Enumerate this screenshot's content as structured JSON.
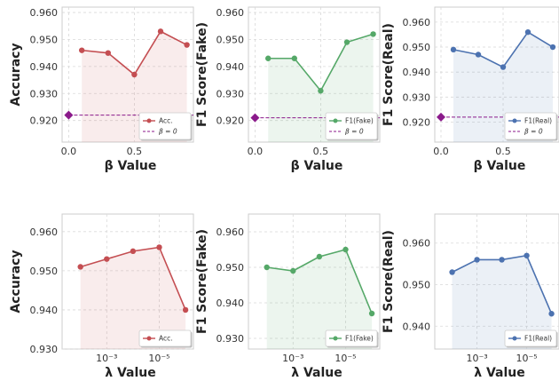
{
  "chart_data": [
    {
      "type": "line",
      "ylabel": "Accuracy",
      "xlabel": "β Value",
      "xscale": "linear",
      "xticks": [
        0.0,
        0.5
      ],
      "xtick_labels": [
        "0.0",
        "0.5"
      ],
      "xlim": [
        -0.05,
        0.95
      ],
      "ylim": [
        0.912,
        0.962
      ],
      "yticks": [
        0.92,
        0.93,
        0.94,
        0.95,
        0.96
      ],
      "ytick_labels": [
        "0.920",
        "0.930",
        "0.940",
        "0.950",
        "0.960"
      ],
      "series": [
        {
          "name": "Acc.",
          "color": "#c44e52",
          "x": [
            0.1,
            0.3,
            0.5,
            0.7,
            0.9
          ],
          "y": [
            0.946,
            0.945,
            0.937,
            0.953,
            0.948
          ]
        }
      ],
      "baseline": {
        "name": "β = 0",
        "color": "#8b1a8b",
        "x": 0.0,
        "y": 0.922
      },
      "legend_position": "lower-right",
      "grid": true
    },
    {
      "type": "line",
      "ylabel": "F1 Score(Fake)",
      "xlabel": "β Value",
      "xscale": "linear",
      "xticks": [
        0.0,
        0.5
      ],
      "xtick_labels": [
        "0.0",
        "0.5"
      ],
      "xlim": [
        -0.05,
        0.95
      ],
      "ylim": [
        0.912,
        0.962
      ],
      "yticks": [
        0.92,
        0.93,
        0.94,
        0.95,
        0.96
      ],
      "ytick_labels": [
        "0.920",
        "0.930",
        "0.940",
        "0.950",
        "0.960"
      ],
      "series": [
        {
          "name": "F1(Fake)",
          "color": "#55a868",
          "x": [
            0.1,
            0.3,
            0.5,
            0.7,
            0.9
          ],
          "y": [
            0.943,
            0.943,
            0.931,
            0.949,
            0.952
          ]
        }
      ],
      "baseline": {
        "name": "β = 0",
        "color": "#8b1a8b",
        "x": 0.0,
        "y": 0.921
      },
      "legend_position": "lower-right",
      "grid": true
    },
    {
      "type": "line",
      "ylabel": "F1 Score(Real)",
      "xlabel": "β Value",
      "xscale": "linear",
      "xticks": [
        0.0,
        0.5
      ],
      "xtick_labels": [
        "0.0",
        "0.5"
      ],
      "xlim": [
        -0.05,
        0.95
      ],
      "ylim": [
        0.912,
        0.966
      ],
      "yticks": [
        0.92,
        0.93,
        0.94,
        0.95,
        0.96
      ],
      "ytick_labels": [
        "0.920",
        "0.930",
        "0.940",
        "0.950",
        "0.960"
      ],
      "series": [
        {
          "name": "F1(Real)",
          "color": "#4c72b0",
          "x": [
            0.1,
            0.3,
            0.5,
            0.7,
            0.9
          ],
          "y": [
            0.949,
            0.947,
            0.942,
            0.956,
            0.95
          ]
        }
      ],
      "baseline": {
        "name": "β = 0",
        "color": "#8b1a8b",
        "x": 0.0,
        "y": 0.922
      },
      "legend_position": "lower-right",
      "grid": true
    },
    {
      "type": "line",
      "ylabel": "Accuracy",
      "xlabel": "λ Value",
      "xscale": "log-reversed",
      "xticks": [
        0.001,
        1e-05
      ],
      "xtick_labels": [
        "10⁻³",
        "10⁻⁵"
      ],
      "xlim": [
        0.05,
        5e-07
      ],
      "ylim": [
        0.93,
        0.9645
      ],
      "yticks": [
        0.93,
        0.94,
        0.95,
        0.96
      ],
      "ytick_labels": [
        "0.930",
        "0.940",
        "0.950",
        "0.960"
      ],
      "series": [
        {
          "name": "Acc.",
          "color": "#c44e52",
          "x": [
            0.01,
            0.001,
            0.0001,
            1e-05,
            1e-06
          ],
          "y": [
            0.951,
            0.953,
            0.955,
            0.956,
            0.94
          ]
        }
      ],
      "legend_position": "lower-right",
      "grid": true
    },
    {
      "type": "line",
      "ylabel": "F1 Score(Fake)",
      "xlabel": "λ Value",
      "xscale": "log-reversed",
      "xticks": [
        0.001,
        1e-05
      ],
      "xtick_labels": [
        "10⁻³",
        "10⁻⁵"
      ],
      "xlim": [
        0.05,
        5e-07
      ],
      "ylim": [
        0.927,
        0.965
      ],
      "yticks": [
        0.93,
        0.94,
        0.95,
        0.96
      ],
      "ytick_labels": [
        "0.930",
        "0.940",
        "0.950",
        "0.960"
      ],
      "series": [
        {
          "name": "F1(Fake)",
          "color": "#55a868",
          "x": [
            0.01,
            0.001,
            0.0001,
            1e-05,
            1e-06
          ],
          "y": [
            0.95,
            0.949,
            0.953,
            0.955,
            0.937
          ]
        }
      ],
      "legend_position": "lower-right",
      "grid": true
    },
    {
      "type": "line",
      "ylabel": "F1 Score(Real)",
      "xlabel": "λ Value",
      "xscale": "log-reversed",
      "xticks": [
        0.001,
        1e-05
      ],
      "xtick_labels": [
        "10⁻³",
        "10⁻⁵"
      ],
      "xlim": [
        0.05,
        5e-07
      ],
      "ylim": [
        0.9345,
        0.967
      ],
      "yticks": [
        0.94,
        0.95,
        0.96
      ],
      "ytick_labels": [
        "0.940",
        "0.950",
        "0.960"
      ],
      "series": [
        {
          "name": "F1(Real)",
          "color": "#4c72b0",
          "x": [
            0.01,
            0.001,
            0.0001,
            1e-05,
            1e-06
          ],
          "y": [
            0.953,
            0.956,
            0.956,
            0.957,
            0.943
          ]
        }
      ],
      "legend_position": "lower-right",
      "grid": true
    }
  ]
}
